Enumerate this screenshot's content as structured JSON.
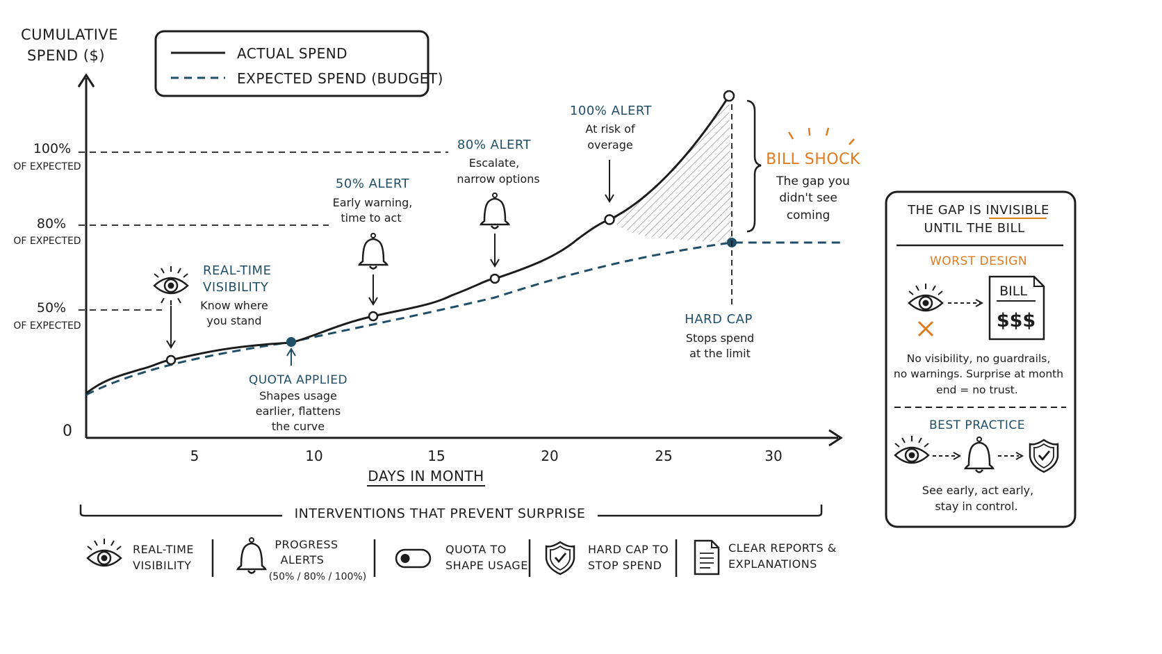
{
  "colors": {
    "ink": "#1c1c1c",
    "teal": "#1f4e66",
    "orange": "#e07a1f",
    "hatch": "#8a8a8a"
  },
  "y_axis": {
    "label_line1": "CUMULATIVE",
    "label_line2": "SPEND ($)",
    "zero": "0"
  },
  "ref_lines": [
    {
      "pct": "100%",
      "sub": "OF EXPECTED"
    },
    {
      "pct": "80%",
      "sub": "OF EXPECTED"
    },
    {
      "pct": "50%",
      "sub": "OF EXPECTED"
    }
  ],
  "legend": {
    "actual": "ACTUAL SPEND",
    "expected": "EXPECTED SPEND (BUDGET)"
  },
  "x_axis": {
    "label": "DAYS IN MONTH",
    "ticks": [
      "5",
      "10",
      "15",
      "20",
      "25",
      "30"
    ]
  },
  "annotations": {
    "visibility": {
      "title_line1": "REAL-TIME",
      "title_line2": "VISIBILITY",
      "line1": "Know where",
      "line2": "you stand"
    },
    "quota": {
      "title": "QUOTA APPLIED",
      "line1": "Shapes usage",
      "line2": "earlier, flattens",
      "line3": "the curve"
    },
    "alert50": {
      "title": "50% ALERT",
      "line1": "Early warning,",
      "line2": "time to act"
    },
    "alert80": {
      "title": "80% ALERT",
      "line1": "Escalate,",
      "line2": "narrow options"
    },
    "alert100": {
      "title": "100% ALERT",
      "line1": "At risk of",
      "line2": "overage"
    },
    "hardcap": {
      "title": "HARD CAP",
      "line1": "Stops spend",
      "line2": "at the limit"
    },
    "billshock": {
      "title": "BILL SHOCK",
      "line1": "The gap you",
      "line2": "didn't see",
      "line3": "coming"
    }
  },
  "side_panel": {
    "title_line1": "THE GAP IS INVISIBLE",
    "title_line2": "UNTIL THE BILL",
    "worst_title": "WORST DESIGN",
    "bill_word": "BILL",
    "bill_amount": "$$$",
    "worst_line1": "No visibility, no guardrails,",
    "worst_line2": "no warnings. Surprise at month",
    "worst_line3": "end = no trust.",
    "best_title": "BEST PRACTICE",
    "best_line1": "See early, act early,",
    "best_line2": "stay in control."
  },
  "interventions": {
    "heading": "INTERVENTIONS THAT PREVENT SURPRISE",
    "items": [
      {
        "line1": "REAL-TIME",
        "line2": "VISIBILITY",
        "line3": ""
      },
      {
        "line1": "PROGRESS",
        "line2": "ALERTS",
        "line3": "(50% / 80% / 100%)"
      },
      {
        "line1": "QUOTA TO",
        "line2": "SHAPE USAGE",
        "line3": ""
      },
      {
        "line1": "HARD CAP TO",
        "line2": "STOP SPEND",
        "line3": ""
      },
      {
        "line1": "CLEAR REPORTS &",
        "line2": "EXPLANATIONS",
        "line3": ""
      }
    ]
  }
}
